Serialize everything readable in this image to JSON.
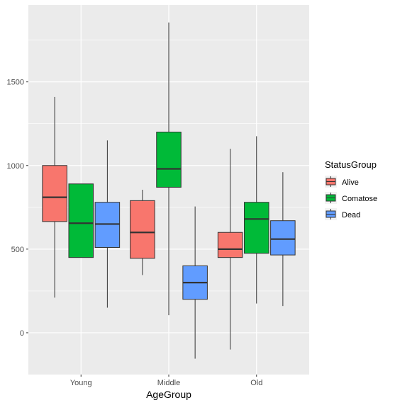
{
  "chart_data": {
    "type": "boxplot",
    "title": "",
    "xlabel": "AgeGroup",
    "ylabel": "",
    "categories": [
      "Young",
      "Middle",
      "Old"
    ],
    "y_ticks": [
      "0",
      "500",
      "1000",
      "1500"
    ],
    "ylim": [
      -250,
      1960
    ],
    "grid": true,
    "legend": {
      "title": "StatusGroup",
      "position": "right"
    },
    "series": [
      {
        "name": "Alive",
        "color": "#F8766D",
        "boxes": [
          {
            "category": "Young",
            "min": 210,
            "q1": 665,
            "median": 810,
            "q3": 1000,
            "max": 1410
          },
          {
            "category": "Middle",
            "min": 345,
            "q1": 445,
            "median": 600,
            "q3": 790,
            "max": 855
          },
          {
            "category": "Old",
            "min": -100,
            "q1": 450,
            "median": 500,
            "q3": 600,
            "max": 1100
          }
        ]
      },
      {
        "name": "Comatose",
        "color": "#00BA38",
        "boxes": [
          {
            "category": "Young",
            "min": 450,
            "q1": 450,
            "median": 655,
            "q3": 890,
            "max": 890
          },
          {
            "category": "Middle",
            "min": 105,
            "q1": 870,
            "median": 980,
            "q3": 1200,
            "max": 1855
          },
          {
            "category": "Old",
            "min": 175,
            "q1": 475,
            "median": 680,
            "q3": 780,
            "max": 1175
          }
        ]
      },
      {
        "name": "Dead",
        "color": "#619CFF",
        "boxes": [
          {
            "category": "Young",
            "min": 150,
            "q1": 510,
            "median": 650,
            "q3": 780,
            "max": 1150
          },
          {
            "category": "Middle",
            "min": -155,
            "q1": 200,
            "median": 300,
            "q3": 400,
            "max": 755
          },
          {
            "category": "Old",
            "min": 160,
            "q1": 465,
            "median": 560,
            "q3": 670,
            "max": 960
          }
        ]
      }
    ]
  }
}
